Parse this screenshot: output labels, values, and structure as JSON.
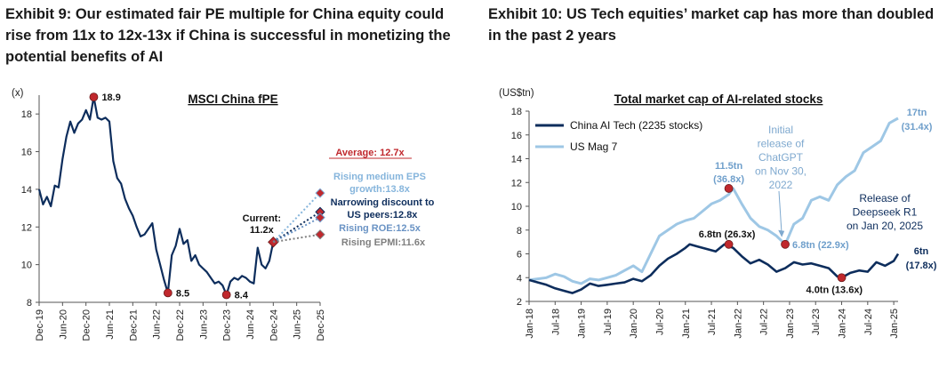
{
  "exhibits": {
    "left": {
      "title": "Exhibit 9: Our estimated fair PE multiple for China equity could rise from 11x to 12x-13x if China is successful in monetizing the potential benefits of AI"
    },
    "right": {
      "title": "Exhibit 10: US Tech equities’ market cap has more than doubled in the past 2 years"
    }
  },
  "colors": {
    "navy": "#0d2d5c",
    "light_blue": "#9ec7e5",
    "red_dot": "#c0282d",
    "average_red": "#c0282d",
    "scenario_eps": "#86b5dc",
    "scenario_discount": "#0d2d5c",
    "scenario_roe": "#6a93c4",
    "scenario_epmi": "#7f7f7f"
  },
  "chart_data": [
    {
      "type": "line",
      "title": "MSCI China fPE",
      "ylabel": "(x)",
      "ylim": [
        8,
        19
      ],
      "yticks": [
        8,
        10,
        12,
        14,
        16,
        18
      ],
      "xlim": [
        "2019-12",
        "2025-12"
      ],
      "xticks": [
        "Dec-19",
        "Jun-20",
        "Dec-20",
        "Jun-21",
        "Dec-21",
        "Jun-22",
        "Dec-22",
        "Jun-23",
        "Dec-23",
        "Jun-24",
        "Dec-24",
        "Jun-25",
        "Dec-25"
      ],
      "series": [
        {
          "x": [
            "2019-12",
            "2020-01",
            "2020-02",
            "2020-03",
            "2020-04",
            "2020-05",
            "2020-06",
            "2020-07",
            "2020-08",
            "2020-09",
            "2020-10",
            "2020-11",
            "2020-12",
            "2021-01",
            "2021-02",
            "2021-03",
            "2021-04",
            "2021-05",
            "2021-06",
            "2021-07",
            "2021-08",
            "2021-09",
            "2021-10",
            "2021-11",
            "2021-12",
            "2022-01",
            "2022-02",
            "2022-03",
            "2022-04",
            "2022-05",
            "2022-06",
            "2022-07",
            "2022-08",
            "2022-09",
            "2022-10",
            "2022-11",
            "2022-12",
            "2023-01",
            "2023-02",
            "2023-03",
            "2023-04",
            "2023-05",
            "2023-06",
            "2023-07",
            "2023-08",
            "2023-09",
            "2023-10",
            "2023-11",
            "2023-12",
            "2024-01",
            "2024-02",
            "2024-03",
            "2024-04",
            "2024-05",
            "2024-06",
            "2024-07",
            "2024-08",
            "2024-09",
            "2024-10",
            "2024-11",
            "2024-12"
          ],
          "values": [
            14.0,
            13.2,
            13.6,
            13.1,
            14.2,
            14.1,
            15.6,
            16.8,
            17.6,
            17.0,
            17.5,
            17.7,
            18.2,
            17.7,
            18.9,
            17.8,
            17.7,
            17.8,
            17.6,
            15.5,
            14.6,
            14.3,
            13.5,
            13.0,
            12.6,
            12.0,
            11.5,
            11.6,
            11.9,
            12.2,
            10.8,
            10.0,
            9.2,
            8.5,
            10.5,
            11.0,
            11.9,
            11.1,
            11.3,
            10.2,
            10.5,
            10.0,
            9.8,
            9.6,
            9.3,
            9.0,
            9.1,
            8.9,
            8.4,
            9.1,
            9.3,
            9.2,
            9.4,
            9.3,
            9.1,
            9.0,
            10.9,
            10.0,
            9.8,
            10.2,
            11.2
          ]
        }
      ],
      "annotations": {
        "peak": {
          "x": "2021-02",
          "y": 18.9,
          "label": "18.9"
        },
        "trough_2022": {
          "x": "2022-09",
          "y": 8.5,
          "label": "8.5"
        },
        "trough_2023": {
          "x": "2023-12",
          "y": 8.4,
          "label": "8.4"
        },
        "current": {
          "x": "2024-12",
          "y": 11.2,
          "label_line1": "Current:",
          "label_line2": "11.2x"
        },
        "average": {
          "label": "Average: 12.7x"
        }
      },
      "scenarios": [
        {
          "key": "eps",
          "label_line1": "Rising medium EPS",
          "label_line2": "growth:13.8x",
          "value": 13.8
        },
        {
          "key": "discount",
          "label_line1": "Narrowing discount to",
          "label_line2": "US peers:12.8x",
          "value": 12.8
        },
        {
          "key": "roe",
          "label_line1": "Rising ROE:12.5x",
          "value": 12.5
        },
        {
          "key": "epmi",
          "label_line1": "Rising EPMI:11.6x",
          "value": 11.6
        }
      ],
      "scenario_x": "2025-12",
      "grid": false
    },
    {
      "type": "line",
      "title": "Total market cap of AI-related stocks",
      "ylabel": "(US$tn)",
      "ylim": [
        2,
        18
      ],
      "yticks": [
        2,
        4,
        6,
        8,
        10,
        12,
        14,
        16,
        18
      ],
      "xlim": [
        "2018-01",
        "2025-02"
      ],
      "xticks": [
        "Jan-18",
        "Jul-18",
        "Jan-19",
        "Jul-19",
        "Jan-20",
        "Jul-20",
        "Jan-21",
        "Jul-21",
        "Jan-22",
        "Jul-22",
        "Jan-23",
        "Jul-23",
        "Jan-24",
        "Jul-24",
        "Jan-25"
      ],
      "legend": {
        "position": "top-left"
      },
      "series": [
        {
          "name": "China AI Tech (2235 stocks)",
          "color_key": "navy",
          "x": [
            "2018-01",
            "2018-03",
            "2018-05",
            "2018-07",
            "2018-09",
            "2018-11",
            "2019-01",
            "2019-03",
            "2019-05",
            "2019-07",
            "2019-09",
            "2019-11",
            "2020-01",
            "2020-03",
            "2020-05",
            "2020-07",
            "2020-09",
            "2020-11",
            "2021-01",
            "2021-02",
            "2021-04",
            "2021-06",
            "2021-08",
            "2021-10",
            "2021-12",
            "2022-02",
            "2022-04",
            "2022-06",
            "2022-08",
            "2022-10",
            "2022-12",
            "2023-02",
            "2023-04",
            "2023-06",
            "2023-08",
            "2023-10",
            "2023-12",
            "2024-01",
            "2024-03",
            "2024-05",
            "2024-07",
            "2024-09",
            "2024-11",
            "2025-01",
            "2025-02"
          ],
          "values": [
            3.8,
            3.6,
            3.4,
            3.1,
            2.9,
            2.7,
            3.0,
            3.5,
            3.3,
            3.4,
            3.5,
            3.6,
            3.9,
            3.7,
            4.2,
            5.0,
            5.6,
            6.0,
            6.5,
            6.8,
            6.6,
            6.4,
            6.2,
            6.8,
            6.5,
            5.8,
            5.2,
            5.5,
            5.1,
            4.5,
            4.8,
            5.3,
            5.1,
            5.2,
            5.0,
            4.8,
            4.1,
            4.0,
            4.4,
            4.6,
            4.5,
            5.3,
            5.0,
            5.4,
            6.0
          ]
        },
        {
          "name": "US Mag 7",
          "color_key": "light_blue",
          "x": [
            "2018-01",
            "2018-03",
            "2018-05",
            "2018-07",
            "2018-09",
            "2018-11",
            "2019-01",
            "2019-03",
            "2019-05",
            "2019-07",
            "2019-09",
            "2019-11",
            "2020-01",
            "2020-03",
            "2020-05",
            "2020-07",
            "2020-09",
            "2020-11",
            "2021-01",
            "2021-03",
            "2021-05",
            "2021-07",
            "2021-09",
            "2021-11",
            "2021-12",
            "2022-02",
            "2022-04",
            "2022-06",
            "2022-08",
            "2022-10",
            "2022-12",
            "2023-02",
            "2023-04",
            "2023-06",
            "2023-08",
            "2023-10",
            "2023-12",
            "2024-02",
            "2024-04",
            "2024-06",
            "2024-08",
            "2024-10",
            "2024-12",
            "2025-01",
            "2025-02"
          ],
          "values": [
            3.8,
            3.9,
            4.0,
            4.3,
            4.1,
            3.7,
            3.5,
            3.9,
            3.8,
            4.0,
            4.2,
            4.6,
            5.0,
            4.5,
            6.0,
            7.5,
            8.0,
            8.5,
            8.8,
            9.0,
            9.6,
            10.2,
            10.5,
            11.0,
            11.5,
            10.2,
            9.0,
            8.3,
            8.0,
            7.5,
            6.8,
            8.5,
            9.0,
            10.5,
            10.8,
            10.5,
            11.8,
            12.5,
            13.0,
            14.5,
            15.0,
            15.5,
            17.0,
            17.2,
            17.4
          ]
        }
      ],
      "annotations": {
        "chatgpt": {
          "x": "2022-11",
          "lines": [
            "Initial",
            "release of",
            "ChatGPT",
            "on Nov 30,",
            "2022"
          ]
        },
        "deepseek": {
          "x": "2025-01",
          "lines": [
            "Release of",
            "Deepseek R1",
            "on Jan 20, 2025"
          ]
        },
        "us_peak": {
          "x": "2021-11",
          "y": 11.5,
          "lines": [
            "11.5tn",
            "(36.8x)"
          ]
        },
        "china_peak": {
          "x": "2021-11",
          "y": 6.8,
          "label": "6.8tn (26.3x)"
        },
        "us_trough": {
          "x": "2022-12",
          "y": 6.8,
          "label": "6.8tn (22.9x)"
        },
        "china_trough": {
          "x": "2024-01",
          "y": 4.0,
          "label": "4.0tn (13.6x)"
        },
        "us_end": {
          "lines": [
            "17tn",
            "(31.4x)"
          ]
        },
        "china_end": {
          "lines": [
            "6tn",
            "(17.8x)"
          ]
        }
      },
      "grid": false
    }
  ]
}
